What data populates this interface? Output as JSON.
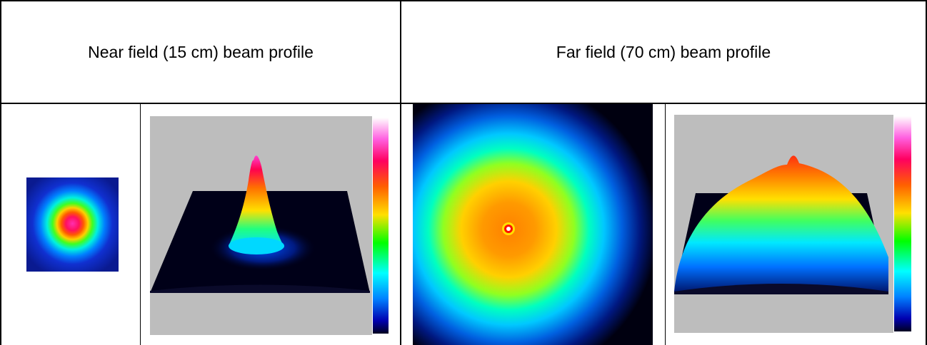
{
  "table": {
    "headers": [
      "Near field (15 cm) beam profile",
      "Far field (70 cm) beam profile"
    ]
  },
  "figures": {
    "near_2d": {
      "icon": "near-field-spot-image"
    },
    "near_3d": {
      "icon": "near-field-3d-surface"
    },
    "far_2d": {
      "icon": "far-field-spot-image"
    },
    "far_3d": {
      "icon": "far-field-3d-surface"
    },
    "colorbar_colors": [
      "#ffffff",
      "#ff3fd0",
      "#ff0040",
      "#ff7a00",
      "#ffe600",
      "#00e000",
      "#00ffff",
      "#0090ff",
      "#0000c0",
      "#000028"
    ]
  }
}
